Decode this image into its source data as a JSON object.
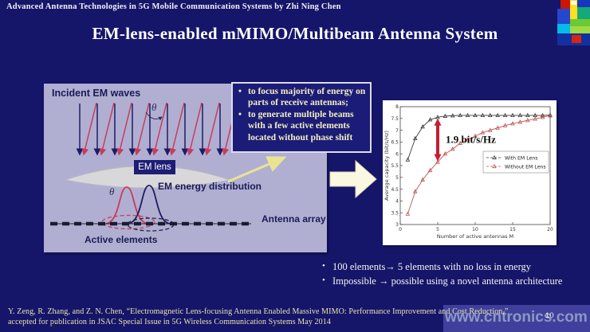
{
  "header": {
    "text": "Advanced Antenna Technologies in 5G Mobile Communication Systems by Zhi Ning Chen"
  },
  "title": "EM-lens-enabled mMIMO/Multibeam Antenna System",
  "page_number": "10",
  "watermark": "www.cntronics.com",
  "diagram": {
    "incident_waves_label": "Incident EM waves",
    "theta_symbol": "θ",
    "lens_label": "EM lens",
    "energy_distribution_label": "EM energy distribution",
    "antenna_array_label": "Antenna array",
    "active_elements_label": "Active elements"
  },
  "callout": {
    "bullets": [
      "to focus majority of energy on parts of receive antennas;",
      "to generate multiple beams with a few active elements located without phase shift"
    ]
  },
  "takeaways": [
    "100 elements→ 5 elements with no loss in energy",
    "Impossible → possible using a novel antenna architecture"
  ],
  "citation": {
    "line1": "Y. Zeng, R. Zhang, and Z. N. Chen, “Electromagnetic Lens-focusing Antenna Enabled Massive MIMO: Performance Improvement and Cost Reduction,”",
    "line2": "accepted for  publication in JSAC Special Issue in 5G Wireless Communication Systems May 2014"
  },
  "chart_data": {
    "type": "line",
    "title": "",
    "xlabel": "Number of active antennas M",
    "ylabel": "Average capacity (bit/s/Hz)",
    "xlim": [
      0,
      20
    ],
    "ylim": [
      3,
      8
    ],
    "xticks": [
      0,
      5,
      10,
      15,
      20
    ],
    "yticks": [
      3,
      3.5,
      4,
      4.5,
      5,
      5.5,
      6,
      6.5,
      7,
      7.5,
      8
    ],
    "grid": false,
    "legend_position": "middle-right",
    "x": [
      1,
      2,
      3,
      4,
      5,
      6,
      7,
      8,
      9,
      10,
      11,
      12,
      13,
      14,
      15,
      16,
      17,
      18,
      19,
      20
    ],
    "series": [
      {
        "name": "With EM Lens",
        "color": "#3d3d3d",
        "marker": "triangle",
        "values": [
          5.75,
          6.65,
          7.15,
          7.45,
          7.55,
          7.6,
          7.62,
          7.63,
          7.63,
          7.63,
          7.63,
          7.63,
          7.63,
          7.63,
          7.63,
          7.63,
          7.63,
          7.63,
          7.63,
          7.65
        ]
      },
      {
        "name": "Without EM Lens",
        "color": "#c05555",
        "marker": "triangle",
        "values": [
          3.45,
          4.4,
          4.9,
          5.3,
          5.65,
          6.0,
          6.2,
          6.45,
          6.6,
          6.75,
          6.9,
          7.0,
          7.1,
          7.2,
          7.28,
          7.35,
          7.42,
          7.48,
          7.55,
          7.62
        ]
      }
    ],
    "annotation": {
      "text": "1.9 bit/s/Hz",
      "x": 5,
      "y1": 5.68,
      "y2": 7.5,
      "color": "#c22030"
    }
  }
}
